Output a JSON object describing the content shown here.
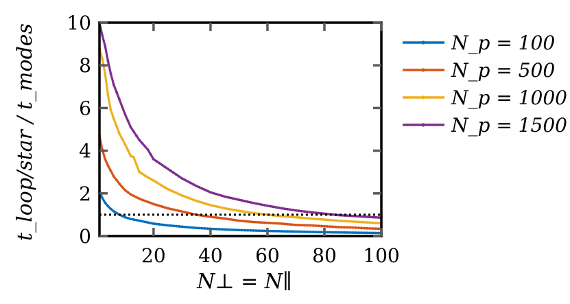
{
  "chart_data": {
    "type": "line",
    "title": "",
    "xlabel": "N⊥ = N∥",
    "ylabel": "t_loop/star / t_modes",
    "xlim": [
      1,
      100
    ],
    "ylim": [
      0,
      10
    ],
    "xticks": [
      20,
      40,
      60,
      80,
      100
    ],
    "yticks": [
      0,
      2,
      4,
      6,
      8,
      10
    ],
    "legend_position": "outside-right",
    "reference_line": {
      "y": 1,
      "style": "dotted",
      "color": "#000000"
    },
    "series": [
      {
        "name": "N_p = 100",
        "legend_label": "N_p = 100",
        "color": "#0072BD",
        "keypoints": [
          [
            1,
            2.1
          ],
          [
            2,
            1.78
          ],
          [
            3,
            1.56
          ],
          [
            4,
            1.4
          ],
          [
            5,
            1.27
          ],
          [
            6,
            1.16
          ],
          [
            8,
            1.0
          ],
          [
            10,
            0.88
          ],
          [
            12,
            0.8
          ],
          [
            15,
            0.72
          ],
          [
            20,
            0.58
          ],
          [
            25,
            0.5
          ],
          [
            30,
            0.44
          ],
          [
            35,
            0.38
          ],
          [
            40,
            0.34
          ],
          [
            45,
            0.31
          ],
          [
            50,
            0.28
          ],
          [
            55,
            0.26
          ],
          [
            60,
            0.24
          ],
          [
            70,
            0.21
          ],
          [
            80,
            0.18
          ],
          [
            90,
            0.16
          ],
          [
            100,
            0.14
          ]
        ]
      },
      {
        "name": "N_p = 500",
        "legend_label": "N_p = 500",
        "color": "#D95319",
        "keypoints": [
          [
            1,
            4.7
          ],
          [
            2,
            4.05
          ],
          [
            3,
            3.6
          ],
          [
            4,
            3.3
          ],
          [
            5,
            3.05
          ],
          [
            6,
            2.8
          ],
          [
            8,
            2.45
          ],
          [
            10,
            2.15
          ],
          [
            12,
            1.95
          ],
          [
            15,
            1.75
          ],
          [
            20,
            1.5
          ],
          [
            25,
            1.3
          ],
          [
            30,
            1.15
          ],
          [
            35,
            1.0
          ],
          [
            40,
            0.9
          ],
          [
            45,
            0.82
          ],
          [
            50,
            0.72
          ],
          [
            55,
            0.66
          ],
          [
            60,
            0.62
          ],
          [
            65,
            0.58
          ],
          [
            70,
            0.52
          ],
          [
            75,
            0.5
          ],
          [
            80,
            0.46
          ],
          [
            85,
            0.42
          ],
          [
            90,
            0.4
          ],
          [
            95,
            0.36
          ],
          [
            100,
            0.34
          ]
        ]
      },
      {
        "name": "N_p = 1000",
        "legend_label": "N_p = 1000",
        "color": "#EDB120",
        "keypoints": [
          [
            1,
            8.8
          ],
          [
            2,
            8.3
          ],
          [
            3,
            7.6
          ],
          [
            4,
            6.6
          ],
          [
            5,
            5.9
          ],
          [
            6,
            5.5
          ],
          [
            8,
            4.8
          ],
          [
            10,
            4.3
          ],
          [
            12,
            3.75
          ],
          [
            13,
            3.7
          ],
          [
            15,
            3.0
          ],
          [
            18,
            2.75
          ],
          [
            20,
            2.6
          ],
          [
            25,
            2.2
          ],
          [
            30,
            1.9
          ],
          [
            35,
            1.65
          ],
          [
            40,
            1.45
          ],
          [
            45,
            1.3
          ],
          [
            50,
            1.18
          ],
          [
            55,
            1.08
          ],
          [
            60,
            1.0
          ],
          [
            65,
            0.93
          ],
          [
            70,
            0.88
          ],
          [
            75,
            0.82
          ],
          [
            80,
            0.77
          ],
          [
            85,
            0.72
          ],
          [
            90,
            0.68
          ],
          [
            95,
            0.64
          ],
          [
            100,
            0.6
          ]
        ]
      },
      {
        "name": "N_p = 1500",
        "legend_label": "N_p = 1500",
        "color": "#7E2F8E",
        "keypoints": [
          [
            1,
            10.0
          ],
          [
            2,
            9.4
          ],
          [
            3,
            8.9
          ],
          [
            4,
            8.2
          ],
          [
            5,
            7.6
          ],
          [
            6,
            7.1
          ],
          [
            8,
            6.4
          ],
          [
            10,
            5.7
          ],
          [
            12,
            5.1
          ],
          [
            15,
            4.5
          ],
          [
            18,
            4.05
          ],
          [
            20,
            3.6
          ],
          [
            25,
            3.15
          ],
          [
            30,
            2.7
          ],
          [
            35,
            2.35
          ],
          [
            40,
            2.05
          ],
          [
            45,
            1.85
          ],
          [
            50,
            1.7
          ],
          [
            55,
            1.55
          ],
          [
            60,
            1.42
          ],
          [
            65,
            1.3
          ],
          [
            70,
            1.2
          ],
          [
            75,
            1.12
          ],
          [
            80,
            1.05
          ],
          [
            85,
            0.98
          ],
          [
            90,
            0.94
          ],
          [
            95,
            0.9
          ],
          [
            100,
            0.86
          ]
        ]
      }
    ]
  }
}
